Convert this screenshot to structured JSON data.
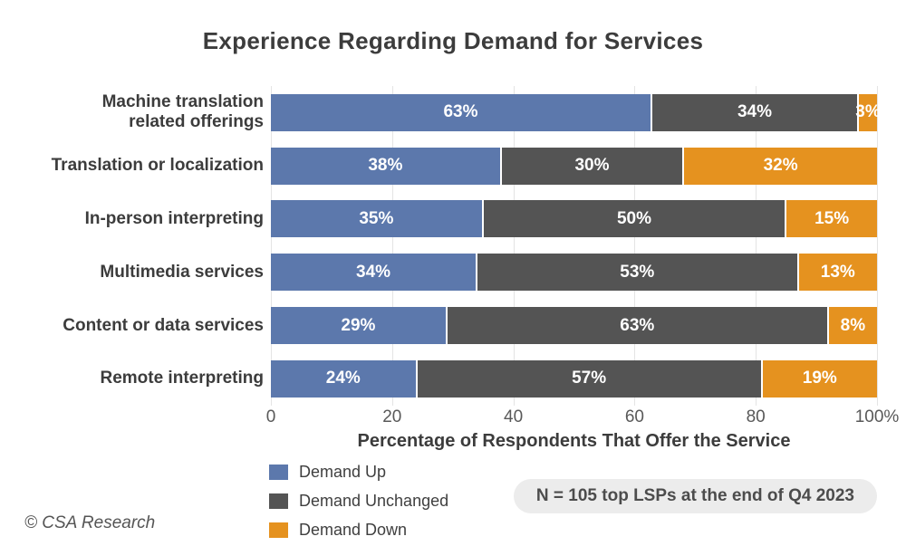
{
  "title": "Experience Regarding Demand for Services",
  "chart_data": {
    "type": "bar",
    "orientation": "horizontal",
    "stacked": true,
    "title": "Experience Regarding Demand for Services",
    "categories": [
      "Machine translation\nrelated offerings",
      "Translation or localization",
      "In-person interpreting",
      "Multimedia services",
      "Content or data services",
      "Remote interpreting"
    ],
    "series": [
      {
        "name": "Demand Up",
        "color": "#5c78ac",
        "values": [
          63,
          38,
          35,
          34,
          29,
          24
        ]
      },
      {
        "name": "Demand Unchanged",
        "color": "#545454",
        "values": [
          34,
          30,
          50,
          53,
          63,
          57
        ]
      },
      {
        "name": "Demand Down",
        "color": "#e5921f",
        "values": [
          3,
          32,
          15,
          13,
          8,
          19
        ]
      }
    ],
    "value_suffix": "%",
    "xlabel": "Percentage of Respondents That Offer the Service",
    "xlim": [
      0,
      100
    ],
    "x_ticks": [
      {
        "value": 0,
        "label": "0"
      },
      {
        "value": 20,
        "label": "20"
      },
      {
        "value": 40,
        "label": "40"
      },
      {
        "value": 60,
        "label": "60"
      },
      {
        "value": 80,
        "label": "80"
      },
      {
        "value": 100,
        "label": "100%"
      }
    ],
    "grid": true,
    "legend_position": "bottom-left"
  },
  "note": "N = 105 top LSPs at the end of Q4 2023",
  "footer": "© CSA Research",
  "colors": {
    "demand_up": "#5c78ac",
    "demand_unchanged": "#545454",
    "demand_down": "#e5921f",
    "grid": "#e4e4e4",
    "title_text": "#3c3c3c",
    "tick_text": "#595959",
    "note_bg": "#ececec"
  }
}
